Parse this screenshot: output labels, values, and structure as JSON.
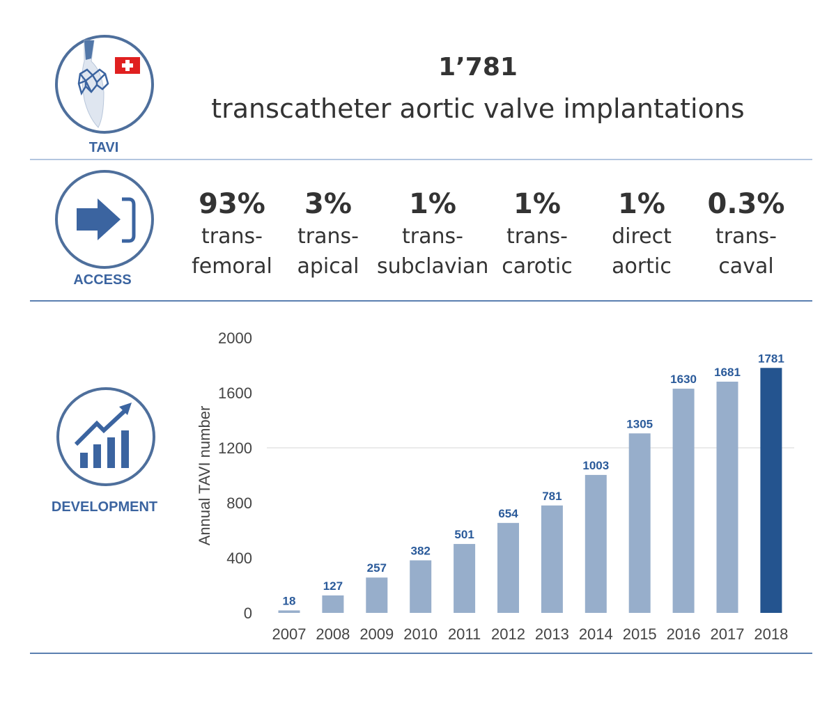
{
  "header": {
    "count": "1’781",
    "subtitle": "transcatheter aortic valve implantations"
  },
  "sections": {
    "tavi_label": "TAVI",
    "access_label": "ACCESS",
    "development_label": "DEVELOPMENT"
  },
  "access": [
    {
      "pct": "93%",
      "line1": "trans-",
      "line2": "femoral"
    },
    {
      "pct": "3%",
      "line1": "trans-",
      "line2": "apical"
    },
    {
      "pct": "1%",
      "line1": "trans-",
      "line2": "subclavian"
    },
    {
      "pct": "1%",
      "line1": "trans-",
      "line2": "carotic"
    },
    {
      "pct": "1%",
      "line1": "direct",
      "line2": "aortic"
    },
    {
      "pct": "0.3%",
      "line1": "trans-",
      "line2": "caval"
    }
  ],
  "colors": {
    "accent": "#3b64a0",
    "bar": "#97aecb",
    "bar_highlight": "#24548f",
    "label": "#2a5a9a"
  },
  "chart_data": {
    "type": "bar",
    "title": "",
    "xlabel": "",
    "ylabel": "Annual TAVI number",
    "categories": [
      "2007",
      "2008",
      "2009",
      "2010",
      "2011",
      "2012",
      "2013",
      "2014",
      "2015",
      "2016",
      "2017",
      "2018"
    ],
    "values": [
      18,
      127,
      257,
      382,
      501,
      654,
      781,
      1003,
      1305,
      1630,
      1681,
      1781
    ],
    "data_labels": [
      "18",
      "127",
      "257",
      "382",
      "501",
      "654",
      "781",
      "1003",
      "1305",
      "1630",
      "1681",
      "1781"
    ],
    "highlight": "2018",
    "ylim": [
      0,
      2000
    ],
    "yticks": [
      "0",
      "400",
      "800",
      "1200",
      "1600",
      "2000"
    ],
    "ytick_values": [
      0,
      400,
      800,
      1200,
      1600,
      2000
    ],
    "gridlines": [
      1200
    ],
    "legend": "none"
  }
}
